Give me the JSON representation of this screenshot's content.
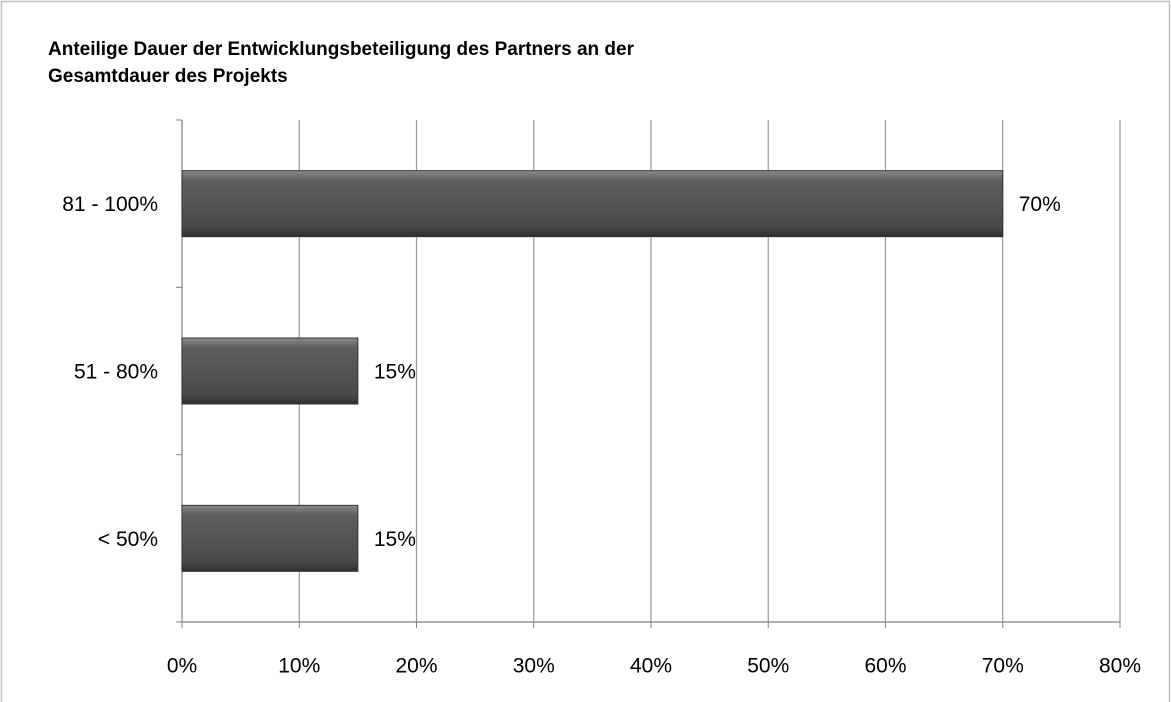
{
  "chart_data": {
    "type": "barh",
    "title": [
      "Anteilige Dauer der Entwicklungsbeteiligung des Partners an der",
      "Gesamtdauer des Projekts"
    ],
    "categories": [
      "81 - 100%",
      "51 - 80%",
      "< 50%"
    ],
    "values": [
      70,
      15,
      15
    ],
    "value_labels": [
      "70%",
      "15%",
      "15%"
    ],
    "color": "#555555",
    "xlim": [
      0,
      80
    ],
    "xticks": [
      {
        "value": 0,
        "label": "0%"
      },
      {
        "value": 10,
        "label": "10%"
      },
      {
        "value": 20,
        "label": "20%"
      },
      {
        "value": 30,
        "label": "30%"
      },
      {
        "value": 40,
        "label": "40%"
      },
      {
        "value": 50,
        "label": "50%"
      },
      {
        "value": 60,
        "label": "60%"
      },
      {
        "value": 70,
        "label": "70%"
      },
      {
        "value": 80,
        "label": "80%"
      }
    ],
    "grid": true
  }
}
